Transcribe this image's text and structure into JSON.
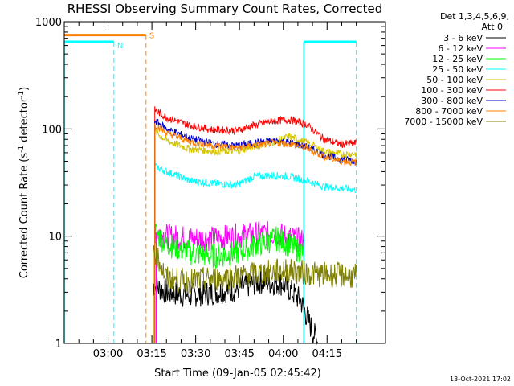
{
  "chart_data": {
    "type": "line",
    "title": "RHESSI Observing Summary Count Rates, Corrected",
    "xlabel": "Start Time (09-Jan-05 02:45:42)",
    "ylabel_main": "Corrected Count Rate (s",
    "ylabel_sup1": "-1",
    "ylabel_mid": " detector",
    "ylabel_sup2": "-1",
    "ylabel_end": ")",
    "yscale": "log",
    "ylim": [
      1,
      1000
    ],
    "y_ticks": [
      {
        "value": 1,
        "label": "1"
      },
      {
        "value": 10,
        "label": "10"
      },
      {
        "value": 100,
        "label": "100"
      },
      {
        "value": 1000,
        "label": "1000"
      }
    ],
    "xlim_minutes": [
      -15,
      95
    ],
    "x_ticks": [
      {
        "minute": 0,
        "label": "03:00"
      },
      {
        "minute": 15,
        "label": "03:15"
      },
      {
        "minute": 30,
        "label": "03:30"
      },
      {
        "minute": 45,
        "label": "03:45"
      },
      {
        "minute": 60,
        "label": "04:00"
      },
      {
        "minute": 75,
        "label": "04:15"
      }
    ],
    "detectors": "Det 1,3,4,5,6,9,",
    "attenuator": "Att 0",
    "series": [
      {
        "name": "3 - 6 keV",
        "color": "#000000",
        "points": [
          [
            15.5,
            3.5
          ],
          [
            20,
            3
          ],
          [
            28,
            2.8
          ],
          [
            36,
            3
          ],
          [
            44,
            3.2
          ],
          [
            52,
            3.8
          ],
          [
            60,
            3.6
          ],
          [
            66,
            2.5
          ],
          [
            70,
            1.3
          ],
          [
            72,
            1
          ]
        ]
      },
      {
        "name": "6 - 12 keV",
        "color": "#ff00ff",
        "points": [
          [
            16.5,
            11
          ],
          [
            20,
            10
          ],
          [
            28,
            9.5
          ],
          [
            36,
            9.5
          ],
          [
            44,
            10
          ],
          [
            52,
            10.5
          ],
          [
            58,
            10.5
          ],
          [
            63,
            9.5
          ],
          [
            67,
            9
          ]
        ]
      },
      {
        "name": "12 - 25 keV",
        "color": "#00ff00",
        "points": [
          [
            16,
            11
          ],
          [
            20,
            8.5
          ],
          [
            28,
            7
          ],
          [
            36,
            6.5
          ],
          [
            44,
            7
          ],
          [
            52,
            8.5
          ],
          [
            58,
            9.5
          ],
          [
            63,
            8
          ],
          [
            67,
            7
          ]
        ]
      },
      {
        "name": "25 - 50 keV",
        "color": "#00ffff",
        "points": [
          [
            16,
            45
          ],
          [
            20,
            40
          ],
          [
            28,
            33
          ],
          [
            36,
            31
          ],
          [
            44,
            30
          ],
          [
            50,
            36
          ],
          [
            56,
            37
          ],
          [
            62,
            36
          ],
          [
            68,
            33
          ],
          [
            74,
            29
          ],
          [
            80,
            28
          ],
          [
            85,
            27
          ]
        ]
      },
      {
        "name": "50 - 100 keV",
        "color": "#d4c400",
        "points": [
          [
            16,
            95
          ],
          [
            20,
            78
          ],
          [
            28,
            65
          ],
          [
            36,
            62
          ],
          [
            44,
            62
          ],
          [
            50,
            68
          ],
          [
            56,
            75
          ],
          [
            62,
            85
          ],
          [
            68,
            75
          ],
          [
            74,
            62
          ],
          [
            80,
            58
          ],
          [
            85,
            59
          ]
        ]
      },
      {
        "name": "100 - 300 keV",
        "color": "#ff0000",
        "points": [
          [
            16,
            150
          ],
          [
            20,
            128
          ],
          [
            28,
            108
          ],
          [
            36,
            98
          ],
          [
            44,
            97
          ],
          [
            50,
            108
          ],
          [
            56,
            118
          ],
          [
            62,
            122
          ],
          [
            68,
            110
          ],
          [
            74,
            80
          ],
          [
            80,
            72
          ],
          [
            85,
            74
          ]
        ]
      },
      {
        "name": "300 - 800 keV",
        "color": "#0000cc",
        "points": [
          [
            16,
            120
          ],
          [
            20,
            100
          ],
          [
            28,
            82
          ],
          [
            36,
            73
          ],
          [
            44,
            70
          ],
          [
            50,
            74
          ],
          [
            56,
            78
          ],
          [
            62,
            75
          ],
          [
            68,
            68
          ],
          [
            74,
            57
          ],
          [
            80,
            52
          ],
          [
            85,
            50
          ]
        ]
      },
      {
        "name": "800 - 7000 keV",
        "color": "#ff8000",
        "points": [
          [
            16,
            110
          ],
          [
            20,
            92
          ],
          [
            28,
            76
          ],
          [
            36,
            70
          ],
          [
            44,
            67
          ],
          [
            50,
            70
          ],
          [
            56,
            74
          ],
          [
            62,
            73
          ],
          [
            68,
            66
          ],
          [
            74,
            55
          ],
          [
            80,
            50
          ],
          [
            85,
            49
          ]
        ]
      },
      {
        "name": "7000 - 15000 keV",
        "color": "#808000",
        "points": [
          [
            15.5,
            8
          ],
          [
            20,
            4
          ],
          [
            28,
            3.8
          ],
          [
            36,
            4
          ],
          [
            44,
            4.2
          ],
          [
            52,
            4.5
          ],
          [
            60,
            4.8
          ],
          [
            66,
            4.6
          ],
          [
            72,
            4.4
          ],
          [
            80,
            4.3
          ],
          [
            85,
            4.2
          ]
        ]
      }
    ],
    "annotations": {
      "night_label": "N",
      "saa_label": "S",
      "night_color": "#00ffff",
      "saa_color": "#ff8000",
      "night_level": 650,
      "saa_level": 750,
      "night_intervals": [
        [
          -15,
          2
        ],
        [
          67,
          85
        ]
      ],
      "saa_intervals": [
        [
          -15,
          13
        ]
      ],
      "night_dashed_at": [
        2,
        85
      ],
      "night_solid_at": [
        -15,
        67
      ],
      "saa_dashed_at": [
        13
      ]
    },
    "legend_position": "right"
  },
  "timestamp": "13-Oct-2021 17:02"
}
